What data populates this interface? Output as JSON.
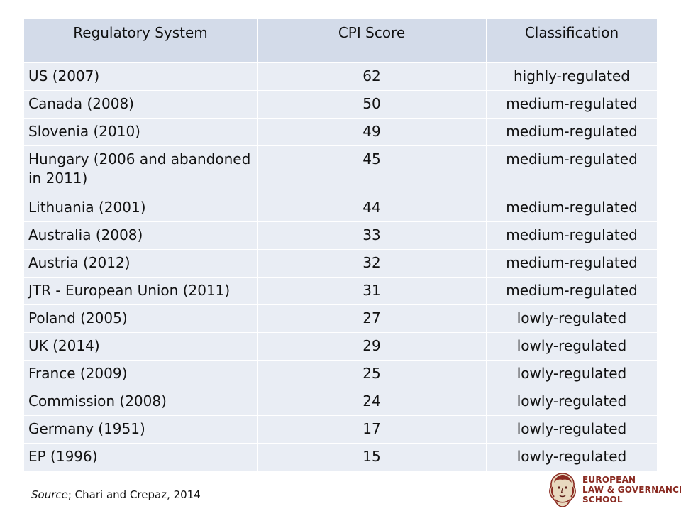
{
  "table": {
    "headers": [
      "Regulatory System",
      "CPI Score",
      "Classification"
    ],
    "rows": [
      {
        "system": "US (2007)",
        "score": "62",
        "classification": "highly-regulated"
      },
      {
        "system": "Canada (2008)",
        "score": "50",
        "classification": "medium-regulated"
      },
      {
        "system": "Slovenia (2010)",
        "score": "49",
        "classification": "medium-regulated"
      },
      {
        "system": "Hungary (2006 and abandoned in 2011)",
        "score": "45",
        "classification": "medium-regulated"
      },
      {
        "system": "Lithuania (2001)",
        "score": "44",
        "classification": "medium-regulated"
      },
      {
        "system": "Australia (2008)",
        "score": "33",
        "classification": "medium-regulated"
      },
      {
        "system": "Austria (2012)",
        "score": "32",
        "classification": "medium-regulated"
      },
      {
        "system": "JTR - European Union (2011)",
        "score": "31",
        "classification": "medium-regulated"
      },
      {
        "system": "Poland (2005)",
        "score": "27",
        "classification": "lowly-regulated"
      },
      {
        "system": "UK (2014)",
        "score": "29",
        "classification": "lowly-regulated"
      },
      {
        "system": "France (2009)",
        "score": "25",
        "classification": "lowly-regulated"
      },
      {
        "system": "Commission (2008)",
        "score": "24",
        "classification": "lowly-regulated"
      },
      {
        "system": "Germany (1951)",
        "score": "17",
        "classification": "lowly-regulated"
      },
      {
        "system": "EP (1996)",
        "score": "15",
        "classification": "lowly-regulated"
      }
    ]
  },
  "source": {
    "label": "Source",
    "text": "; Chari and Crepaz, 2014"
  },
  "logo": {
    "line1": "EUROPEAN",
    "line2": "LAW & GOVERNANCE",
    "line3": "SCHOOL",
    "color": "#8a2b22",
    "icon": "head-emblem-icon"
  },
  "colors": {
    "header_bg": "#d3dbe9",
    "row_bg": "#e9edf4"
  }
}
